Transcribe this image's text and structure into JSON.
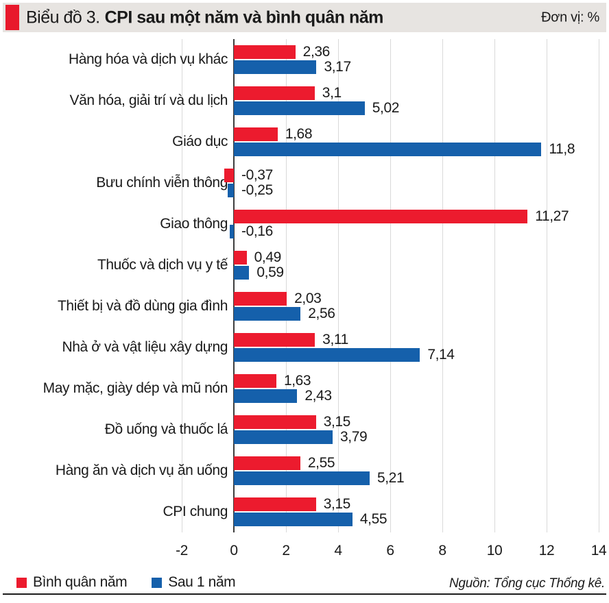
{
  "header": {
    "title_prefix": "Biểu đồ 3.",
    "title_main": "CPI sau một năm và bình quân năm",
    "unit_label": "Đơn vị: %"
  },
  "chart_data": {
    "type": "bar",
    "orientation": "horizontal",
    "title": "Biểu đồ 3. CPI sau một năm và bình quân năm",
    "unit": "%",
    "categories": [
      "Hàng hóa và dịch vụ khác",
      "Văn hóa, giải trí và du lịch",
      "Giáo dục",
      "Bưu chính viễn thông",
      "Giao thông",
      "Thuốc và dịch vụ y tế",
      "Thiết bị và đồ dùng gia đình",
      "Nhà ở  và vật liệu xây dựng",
      "May mặc, giày  dép  và mũ nón",
      "Đồ uống và thuốc lá",
      "Hàng ăn và dịch vụ ăn uống",
      "CPI chung"
    ],
    "series": [
      {
        "name": "Bình quân năm",
        "color": "#ec1b2e",
        "values": [
          2.36,
          3.1,
          1.68,
          -0.37,
          11.27,
          0.49,
          2.03,
          3.11,
          1.63,
          3.15,
          2.55,
          3.15
        ],
        "labels": [
          "2,36",
          "3,1",
          "1,68",
          "-0,37",
          "11,27",
          "0,49",
          "2,03",
          "3,11",
          "1,63",
          "3,15",
          "2,55",
          "3,15"
        ]
      },
      {
        "name": "Sau 1 năm",
        "color": "#1560ab",
        "values": [
          3.17,
          5.02,
          11.8,
          -0.25,
          -0.16,
          0.59,
          2.56,
          7.14,
          2.43,
          3.79,
          5.21,
          4.55
        ],
        "labels": [
          "3,17",
          "5,02",
          "11,8",
          "-0,25",
          "-0,16",
          "0,59",
          "2,56",
          "7,14",
          "2,43",
          "3,79",
          "5,21",
          "4,55"
        ]
      }
    ],
    "xlim": [
      -2,
      14
    ],
    "xticks": [
      -2,
      0,
      2,
      4,
      6,
      8,
      10,
      12,
      14
    ],
    "grid": true,
    "legend_position": "bottom-left",
    "colors": {
      "grid": "#d9d9d9",
      "zero_axis": "#3d3d3d",
      "text": "#1a1a1a",
      "header_bg": "#e7e4e1",
      "accent": "#e8192c"
    }
  },
  "source": "Nguồn: Tổng cục Thống kê."
}
